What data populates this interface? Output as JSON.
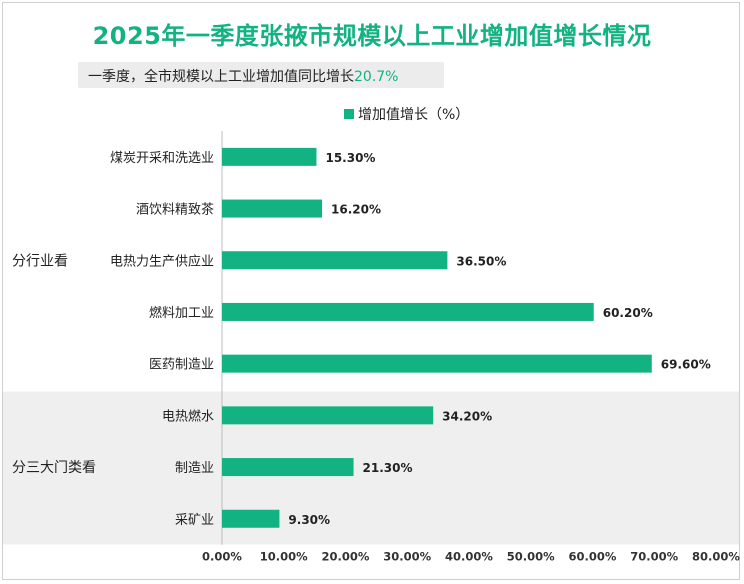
{
  "title": "2025年一季度张掖市规模以上工业增加值增长情况",
  "subtitle": {
    "prefix": "一季度，全市规模以上工业增加值同比增长",
    "value": "20.7%"
  },
  "colors": {
    "accent": "#12b283",
    "band": "#efefef"
  },
  "chart_data": {
    "type": "bar",
    "orientation": "horizontal",
    "categories": [
      "煤炭开采和洗选业",
      "酒饮料精致茶",
      "电热力生产供应业",
      "燃料加工业",
      "医药制造业",
      "电热燃水",
      "制造业",
      "采矿业"
    ],
    "groups": [
      {
        "label": "分行业看",
        "count": 5
      },
      {
        "label": "分三大门类看",
        "count": 3
      }
    ],
    "series": [
      {
        "name": "增加值增长（%）",
        "values": [
          15.3,
          16.2,
          36.5,
          60.2,
          69.6,
          34.2,
          21.3,
          9.3
        ]
      }
    ],
    "data_labels": [
      "15.30%",
      "16.20%",
      "36.50%",
      "60.20%",
      "69.60%",
      "34.20%",
      "21.30%",
      "9.30%"
    ],
    "x_ticks": [
      "0.00%",
      "10.00%",
      "20.00%",
      "30.00%",
      "40.00%",
      "50.00%",
      "60.00%",
      "70.00%",
      "80.00%"
    ],
    "xlim": [
      0,
      80
    ],
    "legend_position": "top-center",
    "grid": false
  }
}
